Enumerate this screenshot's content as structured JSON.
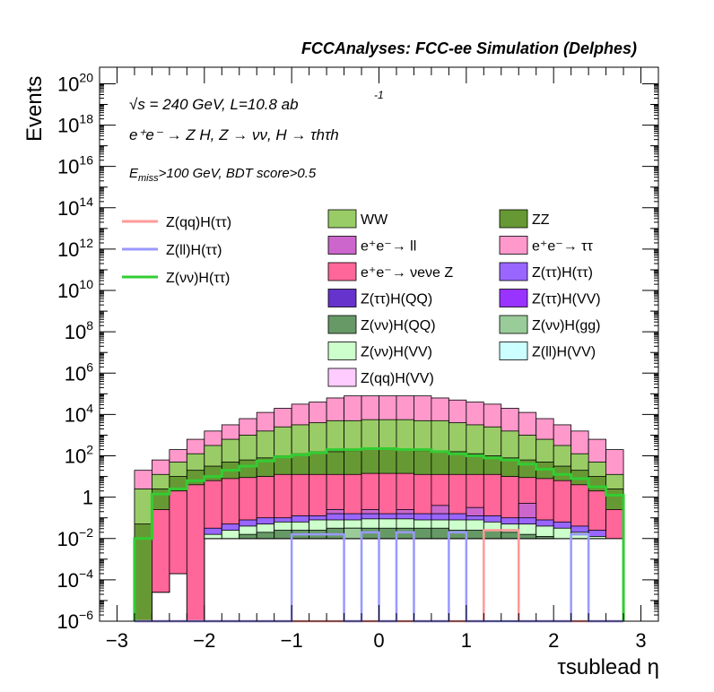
{
  "page_title": "FCCAnalyses: FCC-ee Simulation (Delphes)",
  "annotations": {
    "sqrt_s": "√s = 240 GeV, L=10.8 ab",
    "lumi_exp": "-1",
    "process": "e⁺e⁻ → Z H, Z → νν, H → τhτh",
    "cut_1": "Emiss>100 GeV, BDT score>0.5",
    "emiss_e": "E",
    "emiss_sub": "miss",
    "cut_rest": ">100 GeV, BDT score>0.5"
  },
  "chart_data": {
    "type": "bar",
    "title": "FCCAnalyses: FCC-ee Simulation (Delphes)",
    "xlabel": "τsublead η",
    "ylabel": "Events",
    "xlim": [
      -3.2,
      3.2
    ],
    "ylim_log10": [
      -6,
      20.8
    ],
    "log_y": true,
    "x_ticks": [
      -3,
      -2,
      -1,
      0,
      1,
      2,
      3
    ],
    "y_tick_labels": [
      {
        "exp": -6,
        "text": "10",
        "sup": "−6"
      },
      {
        "exp": -4,
        "text": "10",
        "sup": "−4"
      },
      {
        "exp": -2,
        "text": "10",
        "sup": "−2"
      },
      {
        "exp": 0,
        "text": "1",
        "sup": ""
      },
      {
        "exp": 2,
        "text": "10",
        "sup": "2"
      },
      {
        "exp": 4,
        "text": "10",
        "sup": "4"
      },
      {
        "exp": 6,
        "text": "10",
        "sup": "6"
      },
      {
        "exp": 8,
        "text": "10",
        "sup": "8"
      },
      {
        "exp": 10,
        "text": "10",
        "sup": "10"
      },
      {
        "exp": 12,
        "text": "10",
        "sup": "12"
      },
      {
        "exp": 14,
        "text": "10",
        "sup": "14"
      },
      {
        "exp": 16,
        "text": "10",
        "sup": "16"
      },
      {
        "exp": 18,
        "text": "10",
        "sup": "18"
      },
      {
        "exp": 20,
        "text": "10",
        "sup": "20"
      }
    ],
    "bin_edges": [
      -2.8,
      -2.6,
      -2.4,
      -2.2,
      -2.0,
      -1.8,
      -1.6,
      -1.4,
      -1.2,
      -1.0,
      -0.8,
      -0.6,
      -0.4,
      -0.2,
      0.0,
      0.2,
      0.4,
      0.6,
      0.8,
      1.0,
      1.2,
      1.4,
      1.6,
      1.8,
      2.0,
      2.2,
      2.4,
      2.6,
      2.8
    ],
    "stack_tops_log10": [
      {
        "name": "e⁺e⁻ → ττ",
        "color": "#ff99cc",
        "values": [
          1.3,
          1.8,
          2.3,
          2.8,
          3.2,
          3.5,
          3.8,
          4.1,
          4.3,
          4.5,
          4.6,
          4.8,
          4.9,
          4.9,
          4.9,
          4.9,
          4.9,
          4.8,
          4.7,
          4.6,
          4.5,
          4.3,
          4.1,
          3.8,
          3.5,
          3.2,
          2.8,
          2.3
        ]
      },
      {
        "name": "WW",
        "color": "#99cc66",
        "values": [
          0.4,
          1.1,
          1.7,
          2.1,
          2.5,
          2.8,
          3.0,
          3.2,
          3.4,
          3.5,
          3.6,
          3.7,
          3.7,
          3.75,
          3.75,
          3.75,
          3.7,
          3.7,
          3.6,
          3.5,
          3.4,
          3.2,
          3.0,
          2.8,
          2.5,
          2.1,
          1.7,
          1.1
        ]
      },
      {
        "name": "ZZ",
        "color": "#669933",
        "values": [
          -1.3,
          0.4,
          1.0,
          1.3,
          1.5,
          1.7,
          1.8,
          1.9,
          2.0,
          2.1,
          2.2,
          2.2,
          2.25,
          2.3,
          2.3,
          2.3,
          2.25,
          2.2,
          2.2,
          2.1,
          2.0,
          1.9,
          1.8,
          1.7,
          1.5,
          1.3,
          1.0,
          0.4
        ]
      },
      {
        "name": "e⁺e⁻ → νeνe Z",
        "color": "#ff6699",
        "values": [
          -6,
          -0.6,
          0.3,
          0.6,
          0.8,
          0.9,
          0.95,
          1.0,
          1.1,
          1.1,
          1.1,
          1.1,
          1.1,
          1.15,
          1.15,
          1.15,
          1.1,
          1.1,
          1.1,
          1.1,
          1.1,
          1.0,
          0.95,
          0.9,
          0.8,
          0.6,
          0.3,
          -0.6
        ]
      },
      {
        "name": "e⁺e⁻ → ll",
        "color": "#cc66cc",
        "values": [
          -6,
          -6,
          -6,
          -6,
          -6,
          -6,
          -6,
          -6,
          -6,
          -6,
          -6,
          -0.6,
          -6,
          -0.6,
          -6,
          -0.6,
          -6,
          -0.4,
          -6,
          -0.5,
          -6,
          -6,
          -0.3,
          -6,
          -6,
          -6,
          -6,
          -6
        ]
      },
      {
        "name": "Z(ττ)H(ττ)",
        "color": "#9966ff",
        "values": [
          -6,
          -6,
          -6,
          -6,
          -1.5,
          -1.3,
          -1.1,
          -1.0,
          -1.0,
          -0.9,
          -0.9,
          -0.8,
          -0.8,
          -0.8,
          -0.8,
          -0.8,
          -0.8,
          -0.8,
          -0.8,
          -0.9,
          -0.9,
          -1.0,
          -1.0,
          -1.1,
          -1.2,
          -1.4,
          -1.6,
          -6
        ]
      },
      {
        "name": "Z(νν)H(VV)",
        "color": "#ccffcc",
        "values": [
          -6,
          -6,
          -6,
          -6,
          -1.8,
          -1.6,
          -1.4,
          -1.3,
          -1.2,
          -1.2,
          -1.1,
          -1.1,
          -1.1,
          -1.05,
          -1.05,
          -1.05,
          -1.1,
          -1.1,
          -1.1,
          -1.1,
          -1.2,
          -1.3,
          -1.3,
          -1.4,
          -1.5,
          -1.7,
          -1.9,
          -6
        ]
      },
      {
        "name": "Z(ττ)H(VV)",
        "color": "#9933ff",
        "values": [
          -6,
          -6,
          -6,
          -6,
          -2.6,
          -2.4,
          -2.0,
          -1.9,
          -1.9,
          -1.8,
          -1.8,
          -1.8,
          -1.8,
          -1.7,
          -1.7,
          -1.7,
          -1.8,
          -1.8,
          -1.8,
          -1.8,
          -1.9,
          -2.0,
          -2.1,
          -2.2,
          -2.4,
          -2.7,
          -3.0,
          -6
        ]
      },
      {
        "name": "Z(νν)H(QQ)",
        "color": "#669966",
        "values": [
          -6,
          -6,
          -6,
          -6,
          -6,
          -2.0,
          -1.8,
          -1.7,
          -1.6,
          -1.6,
          -1.6,
          -1.5,
          -1.5,
          -1.5,
          -1.5,
          -1.5,
          -1.5,
          -1.5,
          -1.6,
          -1.6,
          -1.6,
          -1.7,
          -1.8,
          -1.9,
          -2.0,
          -2.2,
          -6,
          -6
        ]
      },
      {
        "name": "Z(ττ)H(QQ)",
        "color": "#6633cc",
        "values": [
          -6,
          -6,
          -6,
          -6,
          -6,
          -6,
          -6,
          -6,
          -6,
          -6,
          -6,
          -6,
          -6,
          -6,
          -6,
          -6,
          -6,
          -6,
          -6,
          -6,
          -6,
          -6,
          -5.0,
          -6,
          -6,
          -6,
          -6,
          -6
        ]
      },
      {
        "name": "Z(νν)H(gg)",
        "color": "#99cc99",
        "values": [
          -6,
          -6,
          -6,
          -6,
          -6,
          -6,
          -6,
          -6,
          -6,
          -6,
          -6,
          -6,
          -1.5,
          -6,
          -6,
          -6,
          -6,
          -6,
          -6,
          -6,
          -6,
          -6,
          -6,
          -6,
          -6,
          -6,
          -6,
          -6
        ]
      },
      {
        "name": "Z(ll)H(VV)",
        "color": "#ccffff",
        "values": [
          -6,
          -6,
          -6,
          -6,
          -6,
          -6,
          -6,
          -6,
          -6,
          -6,
          -6,
          -6,
          -6,
          -6,
          -6,
          -6,
          -6,
          -6,
          -3.1,
          -6,
          -6,
          -6,
          -6,
          -6,
          -6,
          -6,
          -6,
          -6
        ]
      }
    ],
    "stack_base_log10": [
      -6,
      -4.6,
      -3.7,
      -6,
      -2.0,
      -2.0,
      -2.0,
      -2.0,
      -2.0,
      -2.0,
      -2.0,
      -2.0,
      -2.0,
      -2.0,
      -2.0,
      -2.0,
      -2.0,
      -2.0,
      -2.0,
      -2.0,
      -2.0,
      -2.0,
      -2.0,
      -2.0,
      -2.0,
      -2.0,
      -2.0,
      -2.0
    ],
    "signal_series": [
      {
        "name": "Z(qq)H(ττ)",
        "color": "#ff9999",
        "values": [
          -6,
          -6,
          -6,
          -6,
          -6,
          -6,
          -6,
          -6,
          -6,
          -6,
          -6,
          -6,
          -6,
          -6,
          -6,
          -6,
          -6,
          -6,
          -6,
          -6,
          -1.6,
          -1.6,
          -6,
          -6,
          -6,
          -6,
          -6,
          -6
        ]
      },
      {
        "name": "Z(ll)H(ττ)",
        "color": "#9999ff",
        "values": [
          -6,
          -6,
          -6,
          -6,
          -6,
          -6,
          -6,
          -6,
          -6,
          -1.8,
          -1.8,
          -1.8,
          -6,
          -1.7,
          -6,
          -1.7,
          -6,
          -6,
          -1.7,
          -6,
          -6,
          -6,
          -6,
          -6,
          -6,
          -1.8,
          -6,
          -6
        ]
      },
      {
        "name": "Z(νν)H(ττ)",
        "color": "#33cc33",
        "values": [
          -2.0,
          0.15,
          0.4,
          0.8,
          1.0,
          1.3,
          1.5,
          1.75,
          1.95,
          2.05,
          2.15,
          2.3,
          2.3,
          2.35,
          2.35,
          2.3,
          2.3,
          2.2,
          2.1,
          2.0,
          1.9,
          1.8,
          1.6,
          1.35,
          1.1,
          0.9,
          0.5,
          0.1
        ]
      }
    ]
  },
  "legend_left": [
    {
      "label": "Z(qq)H(ττ)",
      "color": "#ff9999"
    },
    {
      "label": "Z(ll)H(ττ)",
      "color": "#9999ff"
    },
    {
      "label": "Z(νν)H(ττ)",
      "color": "#33cc33"
    }
  ],
  "legend_right": [
    {
      "label": "WW",
      "color": "#99cc66"
    },
    {
      "label": "ZZ",
      "color": "#669933"
    },
    {
      "label": "e⁺e⁻→ ll",
      "color": "#cc66cc"
    },
    {
      "label": "e⁺e⁻→ ττ",
      "color": "#ff99cc"
    },
    {
      "label": "e⁺e⁻→ νeνe Z",
      "color": "#ff6699"
    },
    {
      "label": "Z(ττ)H(ττ)",
      "color": "#9966ff"
    },
    {
      "label": "Z(ττ)H(QQ)",
      "color": "#6633cc"
    },
    {
      "label": "Z(ττ)H(VV)",
      "color": "#9933ff"
    },
    {
      "label": "Z(νν)H(QQ)",
      "color": "#669966"
    },
    {
      "label": "Z(νν)H(gg)",
      "color": "#99cc99"
    },
    {
      "label": "Z(νν)H(VV)",
      "color": "#ccffcc"
    },
    {
      "label": "Z(ll)H(VV)",
      "color": "#ccffff"
    },
    {
      "label": "Z(qq)H(VV)",
      "color": "#ffccff"
    }
  ]
}
